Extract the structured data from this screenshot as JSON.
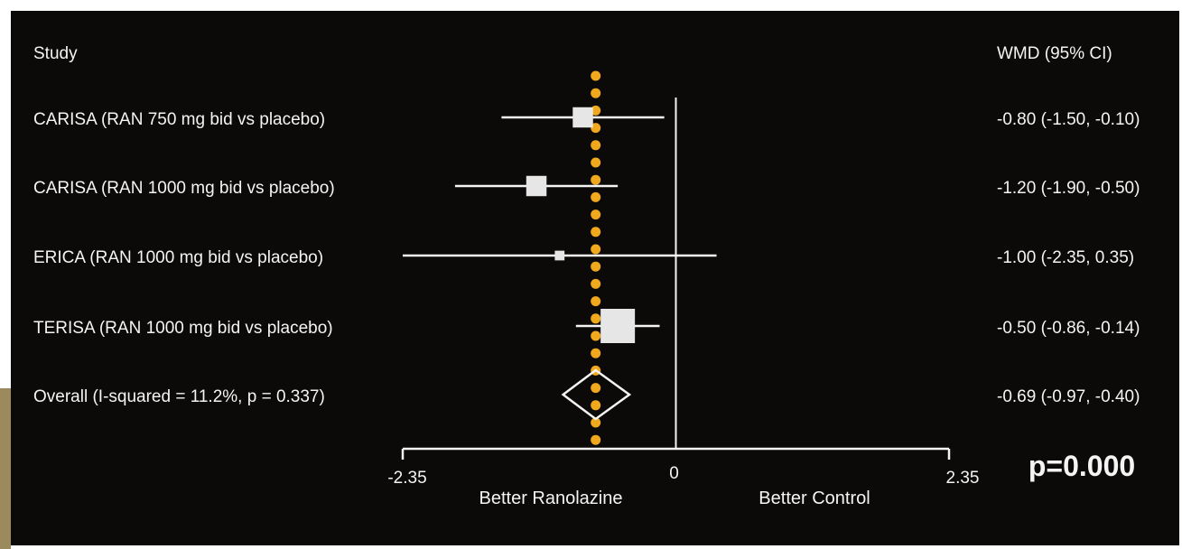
{
  "chart_data": {
    "type": "forest",
    "header": {
      "study": "Study",
      "effect": "WMD (95% CI)"
    },
    "studies": [
      {
        "label": "CARISA (RAN 750 mg bid vs placebo)",
        "wmd": -0.8,
        "lower": -1.5,
        "upper": -0.1,
        "ci_text": "-0.80 (-1.50, -0.10)",
        "weight": 0.35
      },
      {
        "label": "CARISA (RAN 1000 mg bid vs placebo)",
        "wmd": -1.2,
        "lower": -1.9,
        "upper": -0.5,
        "ci_text": "-1.20 (-1.90, -0.50)",
        "weight": 0.35
      },
      {
        "label": "ERICA (RAN 1000 mg bid vs placebo)",
        "wmd": -1.0,
        "lower": -2.35,
        "upper": 0.35,
        "ci_text": "-1.00 (-2.35, 0.35)",
        "weight": 0.08
      },
      {
        "label": "TERISA (RAN 1000 mg bid vs placebo)",
        "wmd": -0.5,
        "lower": -0.86,
        "upper": -0.14,
        "ci_text": "-0.50 (-0.86, -0.14)",
        "weight": 1.0
      }
    ],
    "overall": {
      "label": "Overall  (I-squared = 11.2%, p = 0.337)",
      "wmd": -0.69,
      "lower": -0.97,
      "upper": -0.4,
      "ci_text": "-0.69 (-0.97, -0.40)"
    },
    "xlim": [
      -2.35,
      2.35
    ],
    "x_ticks": [
      "-2.35",
      "0",
      "2.35"
    ],
    "left_caption": "Better Ranolazine",
    "right_caption": "Better Control",
    "p_value_text": "p=0.000",
    "colors": {
      "background": "#0c0a08",
      "foreground": "#f4f4f4",
      "dots": "#f0a81c",
      "frame": "#ffffff",
      "accent_bar": "#9a8a5e"
    }
  }
}
